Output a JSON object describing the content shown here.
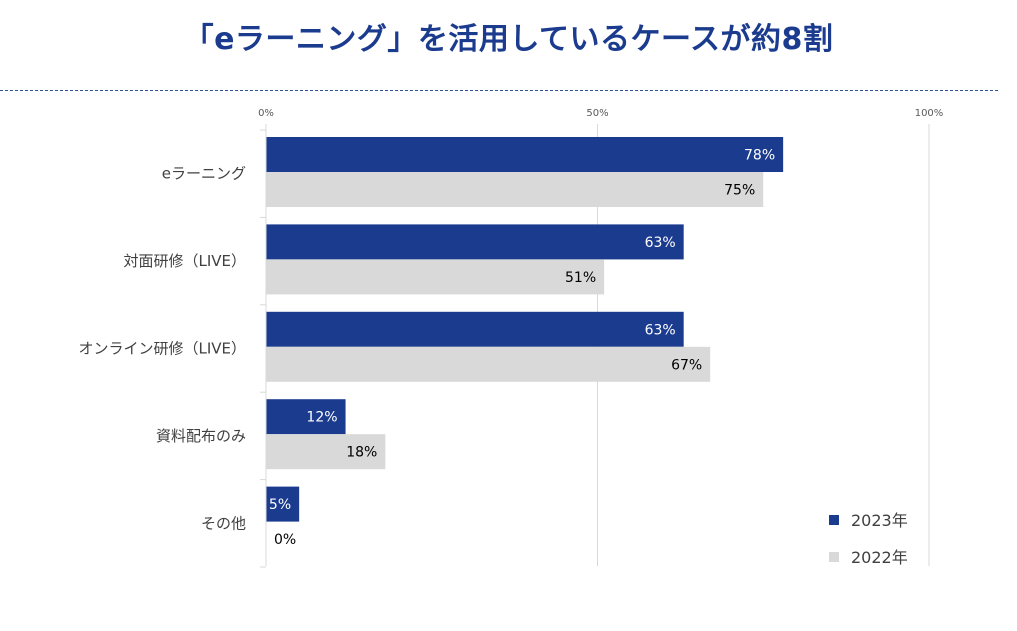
{
  "title": "「eラーニング」を活用しているケースが約8割",
  "colors": {
    "series2023": "#1b3b8f",
    "series2022": "#d9d9d9",
    "grid": "#d9d9d9"
  },
  "chart_data": {
    "type": "bar",
    "orientation": "horizontal",
    "categories": [
      "eラーニング",
      "対面研修（LIVE）",
      "オンライン研修（LIVE）",
      "資料配布のみ",
      "その他"
    ],
    "series": [
      {
        "name": "2023年",
        "values": [
          78,
          63,
          63,
          12,
          5
        ]
      },
      {
        "name": "2022年",
        "values": [
          75,
          51,
          67,
          18,
          0
        ]
      }
    ],
    "value_labels": [
      [
        "78%",
        "63%",
        "63%",
        "12%",
        "5%"
      ],
      [
        "75%",
        "51%",
        "67%",
        "18%",
        "0%"
      ]
    ],
    "xlim": [
      0,
      100
    ],
    "xticks": [
      0,
      50,
      100
    ],
    "xtick_labels": [
      "0%",
      "50%",
      "100%"
    ],
    "legend": "bottom-right",
    "grid": true
  }
}
